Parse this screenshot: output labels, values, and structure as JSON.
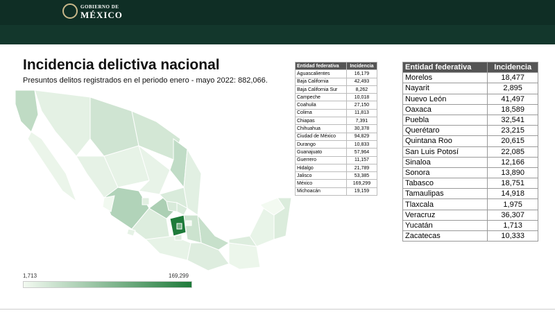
{
  "header": {
    "logo_line1": "GOBIERNO DE",
    "logo_line2": "MÉXICO"
  },
  "title": "Incidencia delictiva nacional",
  "subtitle": "Presuntos delitos registrados en el periodo enero - mayo 2022: 882,066.",
  "legend": {
    "min": {
      "value": 1713,
      "label": "1,713"
    },
    "max": {
      "value": 169299,
      "label": "169,299"
    }
  },
  "table_left": {
    "columns": [
      "Entidad federativa",
      "Incidencia"
    ],
    "rows": [
      [
        "Aguascalientes",
        {
          "value": 16179,
          "label": "16,179"
        }
      ],
      [
        "Baja California",
        {
          "value": 42493,
          "label": "42,493"
        }
      ],
      [
        "Baja California Sur",
        {
          "value": 8262,
          "label": "8,262"
        }
      ],
      [
        "Campeche",
        {
          "value": 10018,
          "label": "10,018"
        }
      ],
      [
        "Coahuila",
        {
          "value": 27150,
          "label": "27,150"
        }
      ],
      [
        "Colima",
        {
          "value": 11813,
          "label": "11,813"
        }
      ],
      [
        "Chiapas",
        {
          "value": 7391,
          "label": "7,391"
        }
      ],
      [
        "Chihuahua",
        {
          "value": 30378,
          "label": "30,378"
        }
      ],
      [
        "Ciudad de México",
        {
          "value": 94829,
          "label": "94,829"
        }
      ],
      [
        "Durango",
        {
          "value": 10833,
          "label": "10,833"
        }
      ],
      [
        "Guanajuato",
        {
          "value": 57964,
          "label": "57,964"
        }
      ],
      [
        "Guerrero",
        {
          "value": 11157,
          "label": "11,157"
        }
      ],
      [
        "Hidalgo",
        {
          "value": 21789,
          "label": "21,789"
        }
      ],
      [
        "Jalisco",
        {
          "value": 53385,
          "label": "53,385"
        }
      ],
      [
        "México",
        {
          "value": 169299,
          "label": "169,299"
        }
      ],
      [
        "Michoacán",
        {
          "value": 19159,
          "label": "19,159"
        }
      ]
    ]
  },
  "table_right": {
    "columns": [
      "Entidad federativa",
      "Incidencia"
    ],
    "rows": [
      [
        "Morelos",
        {
          "value": 18477,
          "label": "18,477"
        }
      ],
      [
        "Nayarit",
        {
          "value": 2895,
          "label": "2,895"
        }
      ],
      [
        "Nuevo León",
        {
          "value": 41497,
          "label": "41,497"
        }
      ],
      [
        "Oaxaca",
        {
          "value": 18589,
          "label": "18,589"
        }
      ],
      [
        "Puebla",
        {
          "value": 32541,
          "label": "32,541"
        }
      ],
      [
        "Querétaro",
        {
          "value": 23215,
          "label": "23,215"
        }
      ],
      [
        "Quintana Roo",
        {
          "value": 20615,
          "label": "20,615"
        }
      ],
      [
        "San Luis Potosí",
        {
          "value": 22085,
          "label": "22,085"
        }
      ],
      [
        "Sinaloa",
        {
          "value": 12166,
          "label": "12,166"
        }
      ],
      [
        "Sonora",
        {
          "value": 13890,
          "label": "13,890"
        }
      ],
      [
        "Tabasco",
        {
          "value": 18751,
          "label": "18,751"
        }
      ],
      [
        "Tamaulipas",
        {
          "value": 14918,
          "label": "14,918"
        }
      ],
      [
        "Tlaxcala",
        {
          "value": 1975,
          "label": "1,975"
        }
      ],
      [
        "Veracruz",
        {
          "value": 36307,
          "label": "36,307"
        }
      ],
      [
        "Yucatán",
        {
          "value": 1713,
          "label": "1,713"
        }
      ],
      [
        "Zacatecas",
        {
          "value": 10333,
          "label": "10,333"
        }
      ]
    ]
  }
}
